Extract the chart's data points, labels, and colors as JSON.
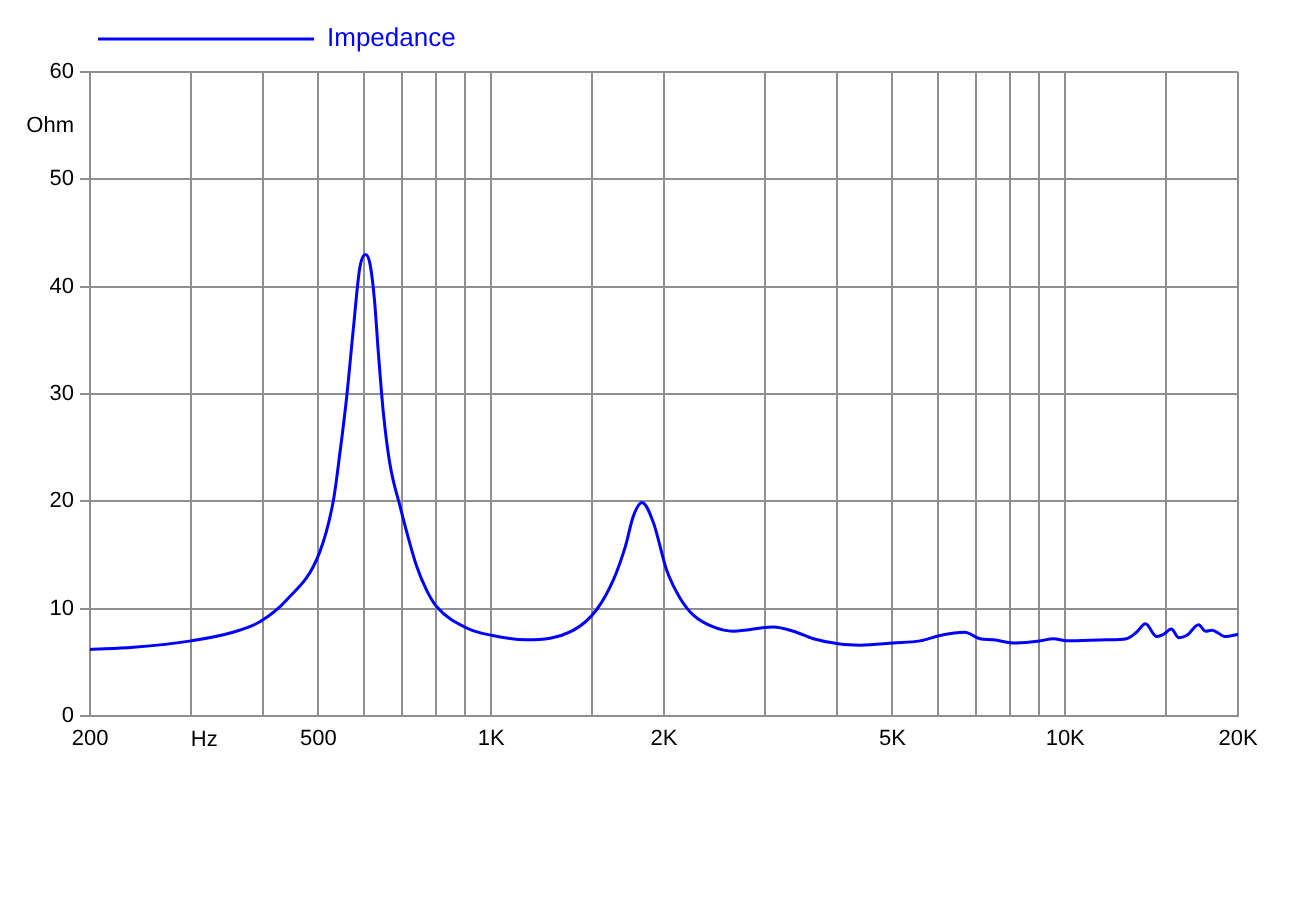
{
  "chart_data": {
    "type": "line",
    "xlabel": "Hz",
    "ylabel": "Ohm",
    "x": [
      200,
      238,
      300,
      355,
      396,
      440,
      502,
      531,
      545,
      560,
      575,
      590,
      604,
      615,
      626,
      636,
      649,
      666,
      694,
      741,
      772,
      803,
      906,
      1005,
      1153,
      1391,
      1526,
      1633,
      1713,
      1768,
      1831,
      1917,
      2021,
      2132,
      2250,
      2438,
      2642,
      3101,
      3362,
      3642,
      4052,
      4392,
      5018,
      5586,
      6052,
      6680,
      7104,
      7497,
      8123,
      9039,
      9538,
      10055,
      11806,
      12790,
      13314,
      13799,
      14432,
      14834,
      15312,
      15759,
      16273,
      17080,
      17552,
      18020,
      19017,
      20000
    ],
    "series": [
      {
        "name": "Impedance",
        "color": "#0000ff",
        "values": [
          6.2,
          6.4,
          7.0,
          7.8,
          8.8,
          10.8,
          15.2,
          20.1,
          24.5,
          29.7,
          36.0,
          41.7,
          43.0,
          42.1,
          38.8,
          33.8,
          28.2,
          23.5,
          19.5,
          14.0,
          11.7,
          10.2,
          8.2,
          7.5,
          7.1,
          8.0,
          9.9,
          12.7,
          15.8,
          18.6,
          19.9,
          18.0,
          13.6,
          11.0,
          9.4,
          8.3,
          7.9,
          8.3,
          7.9,
          7.2,
          6.7,
          6.6,
          6.8,
          7.0,
          7.5,
          7.8,
          7.2,
          7.1,
          6.8,
          7.0,
          7.2,
          7.0,
          7.1,
          7.2,
          7.8,
          8.6,
          7.4,
          7.6,
          8.1,
          7.3,
          7.5,
          8.5,
          7.9,
          8.0,
          7.4,
          7.6
        ]
      }
    ],
    "log": "x",
    "xlim": [
      200,
      20000
    ],
    "ylim": [
      0,
      60
    ],
    "xticks": [
      200,
      {
        "value": 300,
        "label": null
      },
      {
        "value": 400,
        "label": null
      },
      500,
      {
        "value": 600,
        "label": null
      },
      {
        "value": 700,
        "label": null
      },
      {
        "value": 800,
        "label": null
      },
      {
        "value": 900,
        "label": null
      },
      {
        "value": 1000,
        "label": "1K"
      },
      {
        "value": 1500,
        "label": null
      },
      {
        "value": 2000,
        "label": "2K"
      },
      {
        "value": 3000,
        "label": null
      },
      {
        "value": 4000,
        "label": null
      },
      {
        "value": 5000,
        "label": "5K"
      },
      {
        "value": 6000,
        "label": null
      },
      {
        "value": 7000,
        "label": null
      },
      {
        "value": 8000,
        "label": null
      },
      {
        "value": 9000,
        "label": null
      },
      {
        "value": 10000,
        "label": "10K"
      },
      {
        "value": 15000,
        "label": null
      },
      {
        "value": 20000,
        "label": "20K"
      }
    ],
    "yticks": [
      0,
      10,
      20,
      30,
      40,
      50,
      60
    ],
    "grid": true,
    "legend": "top left",
    "marker": "none",
    "line_style": "solid"
  }
}
